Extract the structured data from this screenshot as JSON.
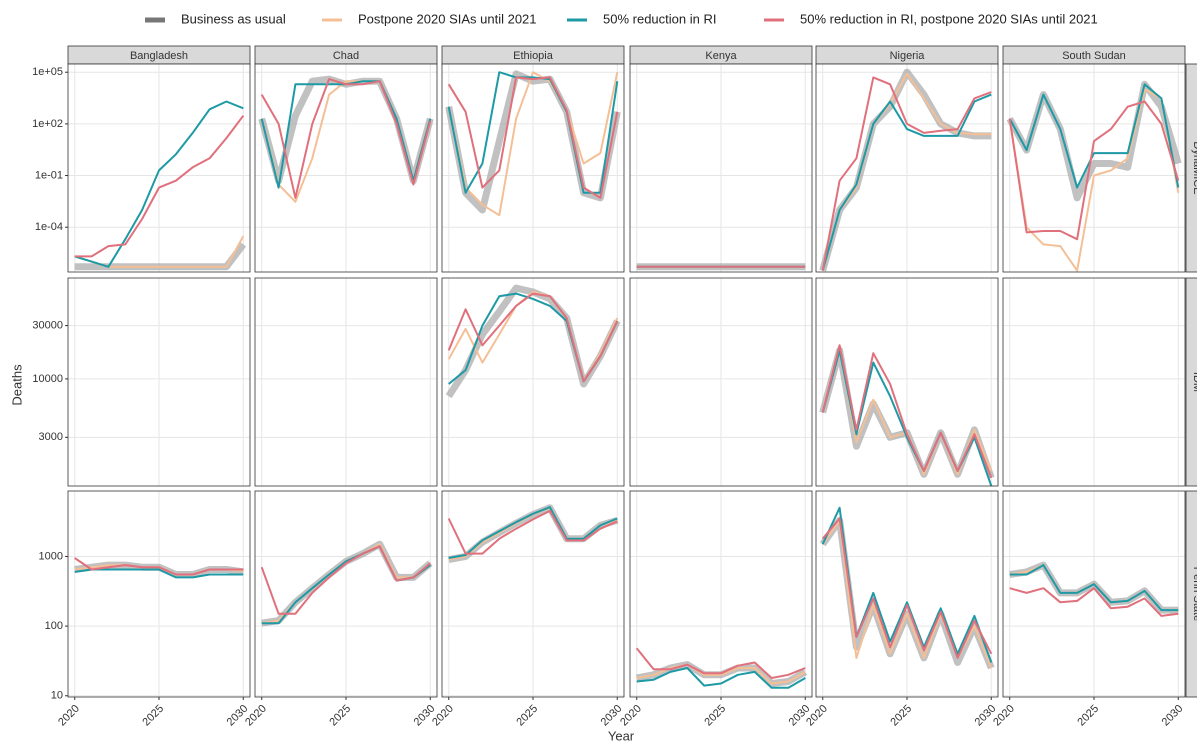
{
  "chart_data": {
    "type": "line",
    "log_y": true,
    "grid": true,
    "legend_position": "top",
    "xlabel": "Year",
    "ylabel": "Deaths",
    "series": [
      {
        "name": "Business as usual",
        "color": "#a6a6a6"
      },
      {
        "name": "Postpone 2020 SIAs until 2021",
        "color": "#f5bf96"
      },
      {
        "name": "50% reduction in RI",
        "color": "#1d9aa6"
      },
      {
        "name": "50% reduction in RI, postpone 2020 SIAs until 2021",
        "color": "#e0707c"
      }
    ],
    "x": [
      2020,
      2021,
      2022,
      2023,
      2024,
      2025,
      2026,
      2027,
      2028,
      2029,
      2030
    ],
    "xlim": [
      2019.6,
      2030.4
    ],
    "xticks": [
      2020,
      2025,
      2030
    ],
    "columns": [
      "Bangladesh",
      "Chad",
      "Ethiopia",
      "Kenya",
      "Nigeria",
      "South Sudan"
    ],
    "rows": [
      {
        "label": "DynaMICE",
        "ylim": [
          2.5e-07,
          300000
        ],
        "yticks": [
          {
            "value": 0.0001,
            "label": "1e-04"
          },
          {
            "value": 0.1,
            "label": "1e-01"
          },
          {
            "value": 100,
            "label": "1e+02"
          },
          {
            "value": 100000,
            "label": "1e+05"
          }
        ],
        "panels": [
          [
            [
              5e-07,
              5e-07,
              5e-07,
              5e-07,
              5e-07,
              5e-07,
              5e-07,
              5e-07,
              5e-07,
              5e-07,
              1e-05
            ],
            [
              2e-06,
              1e-06,
              5e-07,
              5e-07,
              5e-07,
              5e-07,
              5e-07,
              5e-07,
              5e-07,
              5e-07,
              3e-05
            ],
            [
              2e-06,
              1e-06,
              5e-07,
              2e-05,
              0.001,
              0.2,
              1.7,
              30,
              700,
              2000,
              800
            ],
            [
              2e-06,
              2e-06,
              8e-06,
              1e-05,
              0.0003,
              0.02,
              0.05,
              0.3,
              1,
              15,
              300
            ]
          ],
          [
            [
              200,
              0.05,
              300,
              30000,
              40000,
              20000,
              30000,
              30000,
              200,
              0.05,
              200
            ],
            [
              200,
              0.03,
              0.003,
              1,
              5000,
              30000,
              30000,
              30000,
              200,
              0.05,
              200
            ],
            [
              200,
              0.02,
              20000,
              20000,
              20000,
              20000,
              30000,
              30000,
              200,
              0.05,
              200
            ],
            [
              5000,
              100,
              0.005,
              100,
              40000,
              20000,
              20000,
              30000,
              100,
              0.03,
              150
            ]
          ],
          [
            [
              1000,
              0.01,
              0.001,
              10,
              80000,
              30000,
              40000,
              500,
              0.01,
              0.005,
              500
            ],
            [
              1000,
              0.02,
              0.002,
              0.0005,
              200,
              100000,
              30000,
              600,
              0.5,
              2,
              100000
            ],
            [
              1000,
              0.01,
              0.5,
              100000,
              50000,
              50000,
              40000,
              500,
              0.01,
              0.01,
              30000
            ],
            [
              20000,
              500,
              0.02,
              0.2,
              50000,
              40000,
              50000,
              600,
              0.02,
              0.005,
              500
            ]
          ],
          [
            [
              5e-07,
              5e-07,
              5e-07,
              5e-07,
              5e-07,
              5e-07,
              5e-07,
              5e-07,
              5e-07,
              5e-07,
              5e-07
            ],
            [
              5e-07,
              5e-07,
              5e-07,
              5e-07,
              5e-07,
              5e-07,
              5e-07,
              5e-07,
              5e-07,
              5e-07,
              5e-07
            ],
            [
              5e-07,
              5e-07,
              5e-07,
              5e-07,
              5e-07,
              5e-07,
              5e-07,
              5e-07,
              5e-07,
              5e-07,
              5e-07
            ],
            [
              5e-07,
              5e-07,
              5e-07,
              5e-07,
              5e-07,
              5e-07,
              5e-07,
              5e-07,
              5e-07,
              5e-07,
              5e-07
            ]
          ],
          [
            [
              3e-07,
              0.001,
              0.02,
              100,
              1000,
              100000,
              5000,
              100,
              30,
              20,
              20
            ],
            [
              3e-07,
              0.001,
              0.02,
              100,
              1500,
              80000,
              3000,
              100,
              30,
              25,
              25
            ],
            [
              3e-07,
              0.001,
              0.03,
              100,
              2000,
              50,
              20,
              20,
              20,
              2000,
              5000
            ],
            [
              3e-07,
              0.05,
              1,
              50000,
              20000,
              100,
              30,
              40,
              50,
              3000,
              7000
            ]
          ],
          [
            [
              200,
              3,
              5000,
              50,
              0.005,
              0.5,
              0.5,
              0.3,
              20000,
              1000,
              0.5
            ],
            [
              200,
              0.0001,
              1e-05,
              8e-06,
              3e-07,
              0.1,
              0.2,
              1,
              10000,
              3000,
              0.01
            ],
            [
              200,
              3,
              5000,
              50,
              0.02,
              2,
              2,
              2,
              20000,
              3000,
              0.02
            ],
            [
              200,
              5e-05,
              6e-05,
              6e-05,
              2e-05,
              10,
              50,
              1000,
              2000,
              100,
              0.05
            ]
          ]
        ]
      },
      {
        "label": "IDM",
        "ylim": [
          1100,
          80000
        ],
        "yticks": [
          3000,
          10000,
          30000
        ],
        "panels": [
          [],
          [],
          [
            [
              7000,
              12000,
              25000,
              40000,
              65000,
              60000,
              52000,
              35000,
              9000,
              16000,
              33000
            ],
            [
              15000,
              28000,
              14000,
              25000,
              45000,
              60000,
              55000,
              35000,
              9500,
              17000,
              35000
            ],
            [
              9000,
              12000,
              30000,
              55000,
              58000,
              52000,
              45000,
              33000,
              9500,
              16000,
              33000
            ],
            [
              18000,
              42000,
              20000,
              30000,
              45000,
              58000,
              55000,
              35000,
              9500,
              16000,
              33000
            ]
          ],
          [],
          [
            [
              5000,
              18000,
              2500,
              6000,
              3000,
              3300,
              1400,
              3300,
              1400,
              3500,
              1300
            ],
            [
              5000,
              20000,
              2700,
              6500,
              3000,
              3300,
              1400,
              3300,
              1400,
              3500,
              1500
            ],
            [
              5000,
              18000,
              3200,
              14000,
              7000,
              3000,
              1500,
              3300,
              1500,
              3000,
              1100
            ],
            [
              5000,
              20000,
              3500,
              17000,
              9000,
              3200,
              1500,
              3300,
              1500,
              3200,
              1300
            ]
          ],
          []
        ]
      },
      {
        "label": "Penn State",
        "ylim": [
          9.6,
          8700
        ],
        "yticks": [
          10,
          100,
          1000
        ],
        "panels": [
          [
            [
              650,
              700,
              750,
              750,
              700,
              700,
              550,
              550,
              650,
              650,
              600
            ],
            [
              650,
              700,
              750,
              750,
              700,
              700,
              550,
              550,
              650,
              650,
              620
            ],
            [
              600,
              650,
              650,
              650,
              650,
              650,
              500,
              500,
              550,
              550,
              550
            ],
            [
              950,
              650,
              700,
              750,
              700,
              700,
              550,
              550,
              650,
              650,
              650
            ]
          ],
          [
            [
              110,
              120,
              220,
              350,
              550,
              850,
              1100,
              1500,
              500,
              500,
              800
            ],
            [
              110,
              120,
              220,
              350,
              550,
              850,
              1100,
              1500,
              500,
              500,
              800
            ],
            [
              110,
              110,
              220,
              350,
              550,
              850,
              1100,
              1400,
              450,
              500,
              750
            ],
            [
              700,
              150,
              150,
              300,
              500,
              800,
              1100,
              1400,
              450,
              500,
              800
            ]
          ],
          [
            [
              900,
              1000,
              1600,
              2200,
              3000,
              4000,
              5000,
              1800,
              1800,
              2800,
              3300
            ],
            [
              900,
              1000,
              1600,
              2200,
              3000,
              4000,
              5000,
              1800,
              1800,
              2800,
              3300
            ],
            [
              950,
              1050,
              1700,
              2300,
              3100,
              4100,
              5100,
              1800,
              1800,
              2800,
              3500
            ],
            [
              3500,
              1100,
              1100,
              1800,
              2500,
              3400,
              4500,
              1700,
              1700,
              2500,
              3200
            ]
          ],
          [
            [
              18,
              20,
              25,
              28,
              20,
              20,
              25,
              25,
              15,
              16,
              22
            ],
            [
              18,
              20,
              25,
              28,
              20,
              20,
              25,
              25,
              15,
              16,
              22
            ],
            [
              16,
              17,
              22,
              25,
              14,
              15,
              20,
              22,
              13,
              13,
              18
            ],
            [
              48,
              24,
              24,
              28,
              21,
              21,
              27,
              30,
              18,
              20,
              25
            ]
          ],
          [
            [
              1500,
              3300,
              50,
              200,
              40,
              150,
              35,
              150,
              30,
              100,
              25
            ],
            [
              1500,
              3300,
              35,
              200,
              40,
              150,
              35,
              150,
              35,
              100,
              25
            ],
            [
              1500,
              5000,
              70,
              300,
              60,
              220,
              50,
              180,
              40,
              140,
              30
            ],
            [
              1800,
              3500,
              70,
              250,
              50,
              200,
              45,
              160,
              35,
              120,
              40
            ]
          ],
          [
            [
              550,
              600,
              750,
              300,
              300,
              400,
              220,
              230,
              320,
              170,
              170
            ],
            [
              550,
              600,
              750,
              300,
              300,
              400,
              220,
              230,
              320,
              170,
              170
            ],
            [
              550,
              550,
              750,
              300,
              300,
              400,
              220,
              230,
              320,
              170,
              170
            ],
            [
              350,
              300,
              350,
              220,
              230,
              350,
              180,
              190,
              250,
              140,
              150
            ]
          ]
        ]
      }
    ]
  }
}
